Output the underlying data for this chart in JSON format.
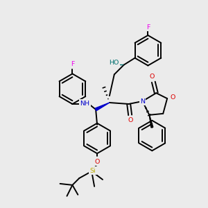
{
  "bg_color": "#ebebeb",
  "bond_color": "#000000",
  "atom_colors": {
    "F": "#ee00ee",
    "O": "#dd0000",
    "N": "#0000cc",
    "HO": "#007070",
    "Si": "#bbaa00",
    "C": "#000000"
  },
  "lw": 1.4,
  "fontsize": 6.8
}
